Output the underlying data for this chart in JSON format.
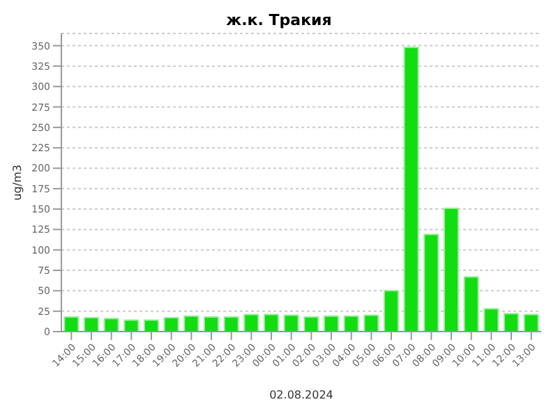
{
  "chart_data": {
    "type": "bar",
    "title": "ж.к. Тракия",
    "xlabel": "02.08.2024",
    "ylabel": "ug/m3",
    "categories": [
      "14:00",
      "15:00",
      "16:00",
      "17:00",
      "18:00",
      "19:00",
      "20:00",
      "21:00",
      "22:00",
      "23:00",
      "00:00",
      "01:00",
      "02:00",
      "03:00",
      "04:00",
      "05:00",
      "06:00",
      "07:00",
      "08:00",
      "09:00",
      "10:00",
      "11:00",
      "12:00",
      "13:00"
    ],
    "values": [
      18,
      17,
      16,
      14,
      14,
      17,
      19,
      18,
      18,
      21,
      21,
      20,
      18,
      19,
      19,
      20,
      50,
      348,
      119,
      151,
      67,
      28,
      22,
      21
    ],
    "color": "#11dd11",
    "ylim": [
      0,
      365
    ],
    "yticks": [
      0,
      25,
      50,
      75,
      100,
      125,
      150,
      175,
      200,
      225,
      250,
      275,
      300,
      325,
      350
    ],
    "grid": "y"
  }
}
